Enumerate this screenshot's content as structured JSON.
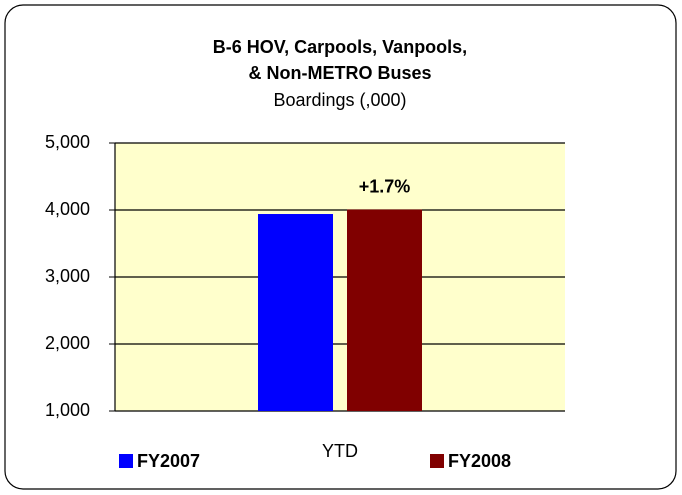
{
  "chart_data": {
    "type": "bar",
    "title": [
      "B-6 HOV, Carpools, Vanpools,",
      "& Non-METRO Buses"
    ],
    "subtitle": "Boardings (,000)",
    "categories": [
      "YTD"
    ],
    "series": [
      {
        "name": "FY2007",
        "color": "#0000ff",
        "values": [
          3940
        ]
      },
      {
        "name": "FY2008",
        "color": "#800000",
        "values": [
          4007
        ]
      }
    ],
    "annotations": [
      "+1.7%"
    ],
    "ylim": [
      1000,
      5000
    ],
    "yticks": [
      {
        "value": 1000,
        "label": "1,000"
      },
      {
        "value": 2000,
        "label": "2,000"
      },
      {
        "value": 3000,
        "label": "3,000"
      },
      {
        "value": 4000,
        "label": "4,000"
      },
      {
        "value": 5000,
        "label": "5,000"
      }
    ],
    "grid": true,
    "plot_background": "#ffffcc",
    "legend": "bottom"
  }
}
